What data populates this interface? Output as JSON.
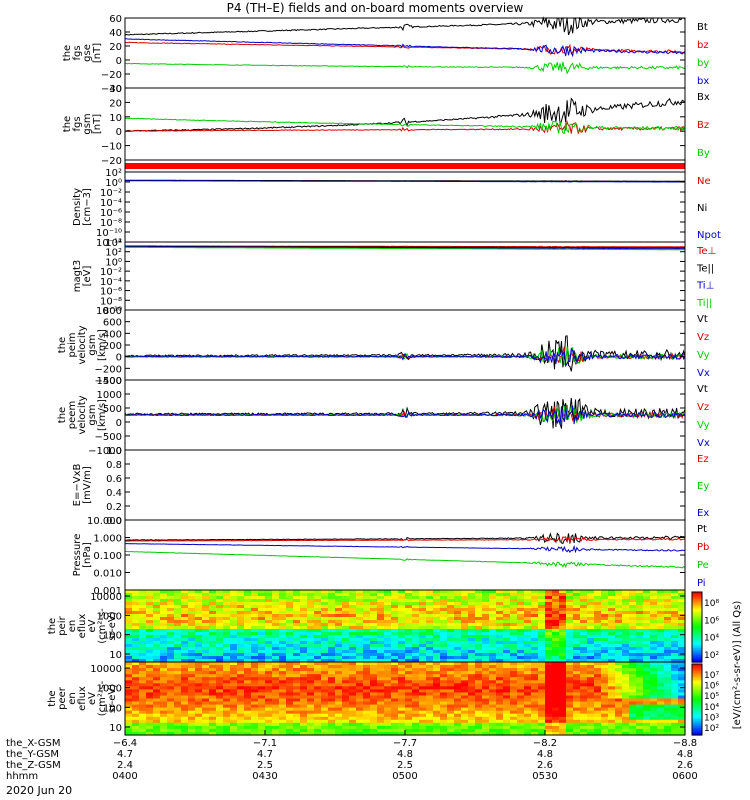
{
  "title": "P4 (TH–E) fields and on-board moments overview",
  "date_label": "2020 Jun 20",
  "colors": {
    "black": "#000000",
    "red": "#dd0000",
    "green": "#00cc00",
    "blue": "#0000cc"
  },
  "chart_data": [
    {
      "type": "line",
      "ylabel": [
        "the",
        "fgs",
        "gse",
        "[nT]"
      ],
      "yticks": [
        "60",
        "40",
        "20",
        "0",
        "−20",
        "−40"
      ],
      "ylim": [
        -40,
        60
      ],
      "series": [
        {
          "name": "Bt",
          "color": "#000000"
        },
        {
          "name": "bz",
          "color": "#dd0000"
        },
        {
          "name": "by",
          "color": "#00cc00"
        },
        {
          "name": "bx",
          "color": "#0000cc"
        }
      ]
    },
    {
      "type": "line",
      "ylabel": [
        "the",
        "fgs",
        "gsm",
        "[nT]"
      ],
      "yticks": [
        "30",
        "20",
        "10",
        "0",
        "−10",
        "−20"
      ],
      "ylim": [
        -25,
        32
      ],
      "series": [
        {
          "name": "Bx",
          "color": "#000000"
        },
        {
          "name": "Bz",
          "color": "#dd0000"
        },
        {
          "name": "By",
          "color": "#00cc00"
        }
      ]
    },
    {
      "type": "bar",
      "ylabel": [],
      "yticks": [],
      "series": []
    },
    {
      "type": "line",
      "ylabel": [
        "Density",
        "[cm−3]"
      ],
      "yticks": [
        "10²",
        "10⁰",
        "10⁻²",
        "10⁻⁴",
        "10⁻⁶",
        "10⁻⁸",
        "10⁻¹⁰",
        "10⁻¹²"
      ],
      "ylim": [
        -12,
        2
      ],
      "scale": "log",
      "series": [
        {
          "name": "Ne",
          "color": "#dd0000"
        },
        {
          "name": "Ni",
          "color": "#000000"
        },
        {
          "name": "Npot",
          "color": "#0000cc"
        }
      ]
    },
    {
      "type": "line",
      "ylabel": [
        "magt3",
        "[eV]"
      ],
      "yticks": [
        "10⁴",
        "10²",
        "10⁰",
        "10⁻²",
        "10⁻⁴",
        "10⁻⁶",
        "10⁻⁸",
        "10⁻¹⁰"
      ],
      "ylim": [
        -10,
        4
      ],
      "scale": "log",
      "series": [
        {
          "name": "Te⊥",
          "color": "#dd0000"
        },
        {
          "name": "Te||",
          "color": "#000000"
        },
        {
          "name": "Ti⊥",
          "color": "#0000cc"
        },
        {
          "name": "Ti||",
          "color": "#00cc00"
        }
      ]
    },
    {
      "type": "line",
      "ylabel": [
        "the",
        "peim",
        "velocity",
        "gsm",
        "[km/s]"
      ],
      "yticks": [
        "800",
        "600",
        "400",
        "200",
        "0",
        "−200",
        "−400"
      ],
      "ylim": [
        -400,
        800
      ],
      "series": [
        {
          "name": "Vt",
          "color": "#000000"
        },
        {
          "name": "Vz",
          "color": "#dd0000"
        },
        {
          "name": "Vy",
          "color": "#00cc00"
        },
        {
          "name": "Vx",
          "color": "#0000cc"
        }
      ]
    },
    {
      "type": "line",
      "ylabel": [
        "the",
        "peem",
        "velocity",
        "gsm",
        "[km/s]"
      ],
      "yticks": [
        "1500",
        "1000",
        "500",
        "0",
        "−500",
        "−1000"
      ],
      "ylim": [
        -1500,
        1500
      ],
      "series": [
        {
          "name": "Vt",
          "color": "#000000"
        },
        {
          "name": "Vz",
          "color": "#dd0000"
        },
        {
          "name": "Vy",
          "color": "#00cc00"
        },
        {
          "name": "Vx",
          "color": "#0000cc"
        }
      ]
    },
    {
      "type": "line",
      "ylabel": [
        "E=−VxB",
        "[mV/m]"
      ],
      "yticks": [
        "1.0",
        "0.8",
        "0.6",
        "0.4",
        "0.2",
        "0.0"
      ],
      "ylim": [
        0,
        1
      ],
      "series": [
        {
          "name": "Ez",
          "color": "#dd0000"
        },
        {
          "name": "Ey",
          "color": "#00cc00"
        },
        {
          "name": "Ex",
          "color": "#0000cc"
        }
      ]
    },
    {
      "type": "line",
      "ylabel": [
        "Pressure",
        "[nPa]"
      ],
      "yticks": [
        "10.000",
        "1.000",
        "0.100",
        "0.010",
        "0.001"
      ],
      "ylim": [
        -3,
        1
      ],
      "scale": "log",
      "series": [
        {
          "name": "Pt",
          "color": "#000000"
        },
        {
          "name": "Pb",
          "color": "#dd0000"
        },
        {
          "name": "Pe",
          "color": "#00cc00"
        },
        {
          "name": "Pi",
          "color": "#0000cc"
        }
      ]
    },
    {
      "type": "heatmap",
      "ylabel": [
        "the",
        "peir",
        "en",
        "eflux",
        "eV",
        "(cm²-s-",
        "sr-eV)"
      ],
      "yticks": [
        "10000",
        "1000",
        "100",
        "10"
      ],
      "scale": "log",
      "ylim": [
        5,
        30000
      ]
    },
    {
      "type": "heatmap",
      "ylabel": [
        "the",
        "peer",
        "en",
        "eflux",
        "eV",
        "(cm²-s-",
        "sr-eV)"
      ],
      "yticks": [
        "10000",
        "1000",
        "100",
        "10"
      ],
      "scale": "log",
      "ylim": [
        5,
        30000
      ]
    }
  ],
  "colorbar_top": {
    "ticks": [
      "10⁸",
      "10⁶",
      "10⁴",
      "10²"
    ]
  },
  "colorbar_bottom": {
    "ticks": [
      "10⁷",
      "10⁶",
      "10⁵",
      "10⁴",
      "10³",
      "10²"
    ]
  },
  "colorbar_label": "[eV/(cm²-s-sr-eV)] (All Qs)",
  "xaxis": {
    "rows": [
      {
        "label": "the_X-GSM",
        "values": [
          "−6.4",
          "−7.1",
          "−7.7",
          "−8.2",
          "−8.8"
        ]
      },
      {
        "label": "the_Y-GSM",
        "values": [
          "4.7",
          "4.7",
          "4.8",
          "4.8",
          "4.8"
        ]
      },
      {
        "label": "the_Z-GSM",
        "values": [
          "2.4",
          "2.5",
          "2.5",
          "2.6",
          "2.6"
        ]
      },
      {
        "label": "hhmm",
        "values": [
          "0400",
          "0430",
          "0500",
          "0530",
          "0600"
        ]
      }
    ]
  }
}
